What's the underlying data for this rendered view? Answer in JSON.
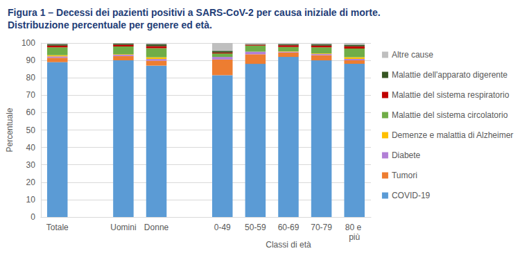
{
  "chart_data": {
    "type": "bar",
    "title": "Figura 1 – Decessi dei pazienti positivi a SARS-CoV-2 per causa iniziale di morte. Distribuzione percentuale per genere ed età.",
    "xlabel": "Classi di età",
    "ylabel": "Percentuale",
    "categories": [
      "Totale",
      null,
      "Uomini",
      "Donne",
      null,
      "0-49",
      "50-59",
      "60-69",
      "70-79",
      "80 e più"
    ],
    "series": [
      {
        "name": "COVID-19",
        "color": "#5b9bd5",
        "values": [
          89,
          null,
          90,
          87,
          null,
          81.5,
          88,
          92,
          90,
          88
        ]
      },
      {
        "name": "Tumori",
        "color": "#ed7d31",
        "values": [
          2.5,
          null,
          2.5,
          2.8,
          null,
          9,
          5.5,
          2.5,
          3,
          2
        ]
      },
      {
        "name": "Diabete",
        "color": "#b27fd6",
        "values": [
          0.8,
          null,
          0.7,
          1,
          null,
          1.5,
          1.5,
          0.5,
          0.7,
          0.8
        ]
      },
      {
        "name": "Demenze e malattia di Alzheimer",
        "color": "#ffc000",
        "values": [
          0.7,
          null,
          0.3,
          1,
          null,
          0,
          0,
          0.2,
          0.3,
          1
        ]
      },
      {
        "name": "Malattie del sistema circolatorio",
        "color": "#70ad47",
        "values": [
          4.5,
          null,
          4.5,
          5.2,
          null,
          2,
          3.5,
          2.5,
          3.5,
          5
        ]
      },
      {
        "name": "Malattie del sistema respiratorio",
        "color": "#c00000",
        "values": [
          1,
          null,
          1,
          1.2,
          null,
          0.5,
          0.5,
          1,
          1,
          1.3
        ]
      },
      {
        "name": "Malattie dell'apparato digerente",
        "color": "#375623",
        "values": [
          0.8,
          null,
          0.7,
          1,
          null,
          1,
          0.3,
          0.6,
          0.8,
          0.9
        ]
      },
      {
        "name": "Altre cause",
        "color": "#bfbfbf",
        "values": [
          0.7,
          null,
          0.3,
          0.8,
          null,
          4.5,
          0.7,
          0.7,
          0.7,
          1
        ]
      }
    ],
    "ylim": [
      0,
      100
    ],
    "yticks": [
      0,
      10,
      20,
      30,
      40,
      50,
      60,
      70,
      80,
      90,
      100
    ],
    "stacked": true,
    "grid": true,
    "legend": "right"
  }
}
